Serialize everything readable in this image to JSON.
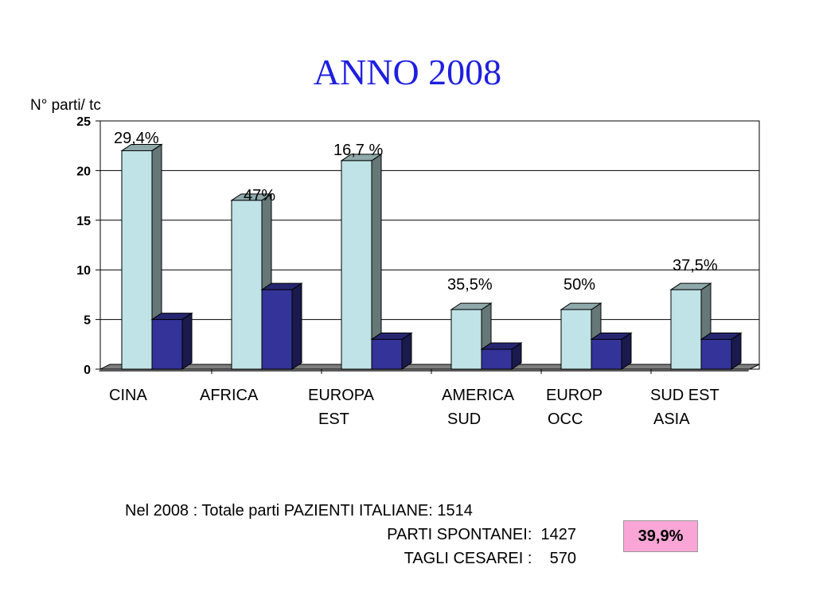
{
  "title": "ANNO 2008",
  "chart_data": {
    "type": "bar",
    "ylabel": "N° parti/ tc",
    "ylim": [
      0,
      25
    ],
    "yticks": [
      "0",
      "5",
      "10",
      "15",
      "20",
      "25"
    ],
    "grid": true,
    "categories": [
      [
        "CINA"
      ],
      [
        "AFRICA"
      ],
      [
        "EUROPA",
        "EST"
      ],
      [
        "AMERICA",
        "SUD"
      ],
      [
        "EUROP",
        "OCC"
      ],
      [
        "SUD EST",
        "ASIA"
      ]
    ],
    "series": [
      {
        "values": [
          22,
          17,
          21,
          6,
          6,
          8
        ],
        "color": "#bfe3e6"
      },
      {
        "values": [
          5,
          8,
          3,
          2,
          3,
          3
        ],
        "color": "#333399"
      }
    ],
    "annotations": [
      "29,4%",
      "47%",
      "16,7 %",
      "35,5%",
      "50%",
      "37,5%"
    ]
  },
  "summary": {
    "line1": "Nel 2008 : Totale parti PAZIENTI ITALIANE: 1514",
    "line2": "PARTI SPONTANEI:  1427",
    "line3": "TAGLI CESAREI :    570"
  },
  "highlight": "39,9%"
}
